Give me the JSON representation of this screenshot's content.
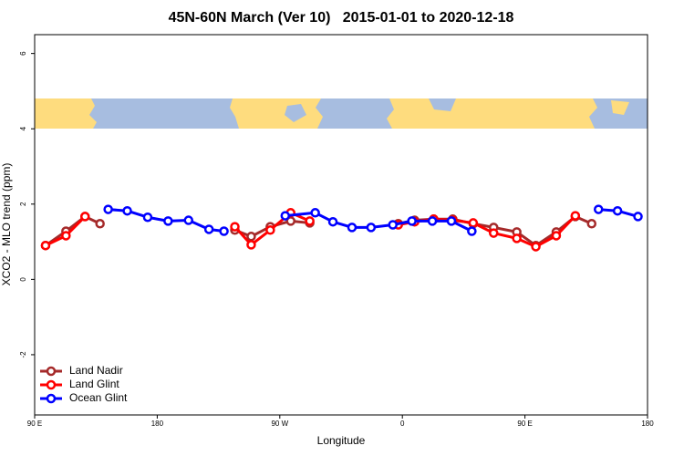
{
  "chart_data": {
    "type": "line",
    "title": "45N-60N March (Ver 10)   2015-01-01 to 2020-12-18",
    "x_label": "Longitude",
    "y_label": "XCO2 - MLO trend (ppm)",
    "xlim": [
      90,
      540
    ],
    "ylim": [
      -3.6,
      6.5
    ],
    "xticks": [
      {
        "value": 90,
        "label": "90 E"
      },
      180,
      {
        "value": 270,
        "label": "90 W"
      },
      {
        "value": 360,
        "label": "0"
      },
      {
        "value": 450,
        "label": "90 E"
      },
      {
        "value": 540,
        "label": "180"
      }
    ],
    "yticks": [
      -2,
      0,
      2,
      4,
      6
    ],
    "legend": "bottom-left",
    "series": [
      {
        "name": "Land Nadir",
        "color": "#a52a2a",
        "x": [
          98,
          113,
          127,
          138,
          null,
          237,
          249,
          263,
          278,
          292,
          null,
          357,
          369,
          383,
          397,
          412,
          427,
          444,
          458,
          473,
          487,
          499
        ],
        "values": [
          0.9,
          1.28,
          1.67,
          1.48,
          null,
          1.31,
          1.14,
          1.4,
          1.55,
          1.5,
          null,
          1.48,
          1.57,
          1.6,
          1.6,
          1.48,
          1.38,
          1.26,
          0.9,
          1.26,
          1.67,
          1.48
        ]
      },
      {
        "name": "Land Glint",
        "color": "#ff0000",
        "x": [
          98,
          113,
          127,
          null,
          237,
          249,
          263,
          278,
          292,
          null,
          357,
          369,
          383,
          397,
          412,
          427,
          444,
          458,
          473,
          487
        ],
        "values": [
          0.9,
          1.16,
          1.67,
          null,
          1.4,
          0.92,
          1.31,
          1.77,
          1.55,
          null,
          1.45,
          1.53,
          1.6,
          1.57,
          1.5,
          1.23,
          1.09,
          0.87,
          1.16,
          1.69
        ]
      },
      {
        "name": "Ocean Glint",
        "color": "#0000ff",
        "x": [
          144,
          158,
          173,
          188,
          203,
          218,
          229,
          null,
          274,
          296,
          309,
          323,
          337,
          353,
          367,
          382,
          396,
          411,
          null,
          504,
          518,
          533
        ],
        "values": [
          1.86,
          1.82,
          1.65,
          1.55,
          1.57,
          1.33,
          1.28,
          null,
          1.69,
          1.77,
          1.53,
          1.38,
          1.38,
          1.45,
          1.55,
          1.55,
          1.55,
          1.28,
          null,
          1.86,
          1.82,
          1.67
        ]
      }
    ]
  }
}
